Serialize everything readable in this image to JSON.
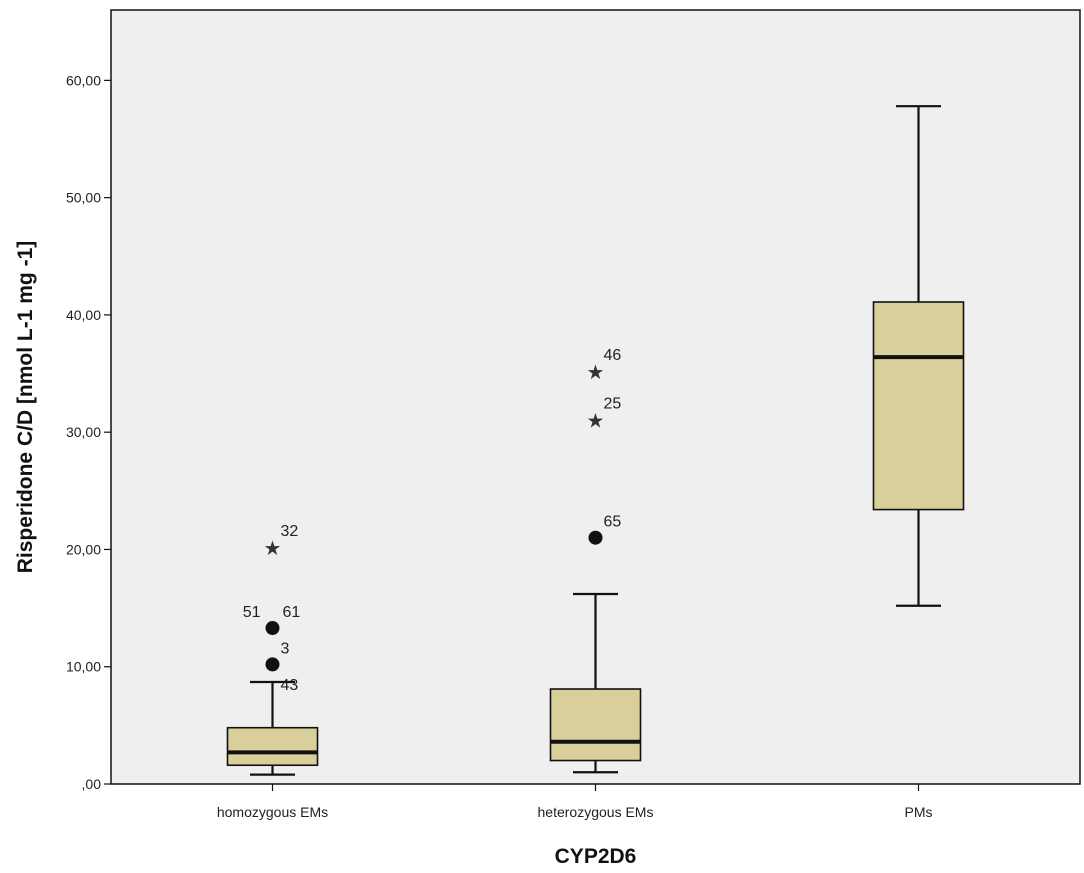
{
  "colors": {
    "plot_background": "#efefef",
    "box_fill": "#d9cf9b",
    "line": "#111111"
  },
  "chart_data": {
    "type": "box",
    "xlabel": "CYP2D6",
    "ylabel": "Risperidone C/D [nmol L-1 mg -1]",
    "ylim": [
      0,
      66
    ],
    "y_ticks": [
      0,
      10,
      20,
      30,
      40,
      50,
      60
    ],
    "y_tick_labels": [
      ",00",
      "10,00",
      "20,00",
      "30,00",
      "40,00",
      "50,00",
      "60,00"
    ],
    "grid": false,
    "categories": [
      "homozygous EMs",
      "heterozygous EMs",
      "PMs"
    ],
    "boxes": [
      {
        "category": "homozygous EMs",
        "whisker_low": 0.8,
        "q1": 1.6,
        "median": 2.7,
        "q3": 4.8,
        "whisker_high": 8.7,
        "outliers": [
          {
            "value": 13.3,
            "marker": "circle",
            "labels": [
              "51",
              "61"
            ]
          },
          {
            "value": 10.2,
            "marker": "circle",
            "labels": [
              "3"
            ]
          },
          {
            "value": 8.7,
            "marker": "none",
            "labels": [
              "43"
            ]
          },
          {
            "value": 20.2,
            "marker": "star",
            "labels": [
              "32"
            ]
          }
        ]
      },
      {
        "category": "heterozygous EMs",
        "whisker_low": 1.0,
        "q1": 2.0,
        "median": 3.6,
        "q3": 8.1,
        "whisker_high": 16.2,
        "outliers": [
          {
            "value": 21.0,
            "marker": "circle",
            "labels": [
              "65"
            ]
          },
          {
            "value": 31.1,
            "marker": "star",
            "labels": [
              "25"
            ]
          },
          {
            "value": 35.2,
            "marker": "star",
            "labels": [
              "46"
            ]
          }
        ]
      },
      {
        "category": "PMs",
        "whisker_low": 15.2,
        "q1": 23.4,
        "median": 36.4,
        "q3": 41.1,
        "whisker_high": 57.8,
        "outliers": []
      }
    ]
  }
}
